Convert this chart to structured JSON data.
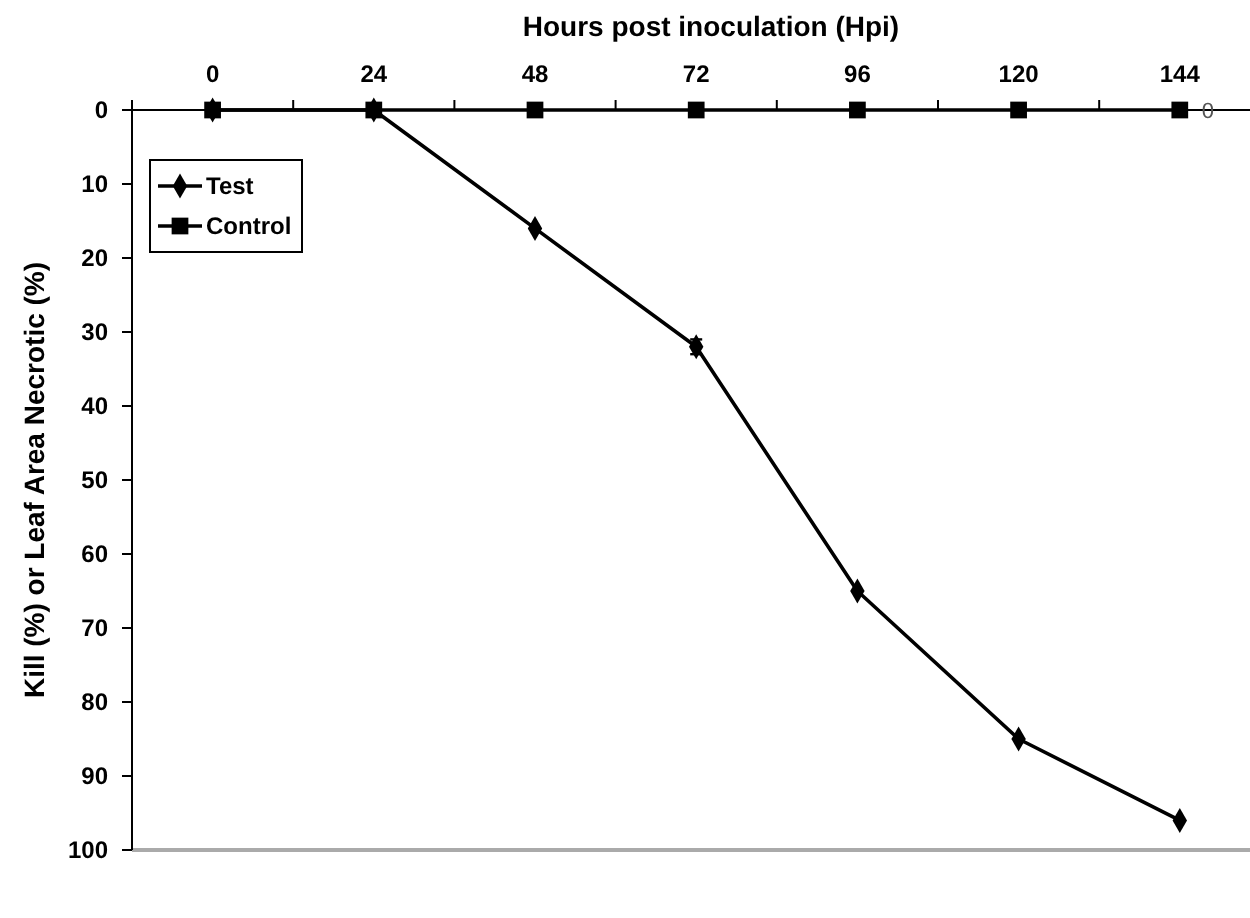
{
  "chart_data": {
    "type": "line",
    "xlabel": "Hours post inoculation (Hpi)",
    "ylabel": "Kill (%) or Leaf Area Necrotic (%)",
    "categories": [
      "0",
      "24",
      "48",
      "72",
      "96",
      "120",
      "144"
    ],
    "ylim": [
      100,
      0
    ],
    "yticks": [
      0,
      10,
      20,
      30,
      40,
      50,
      60,
      70,
      80,
      90,
      100
    ],
    "legend": "top left",
    "series": [
      {
        "name": "Test",
        "color": "#000000",
        "marker": "diamond",
        "values": [
          0,
          0,
          16,
          32,
          65,
          85,
          96
        ],
        "errors": [
          null,
          null,
          null,
          1,
          null,
          null,
          null
        ]
      },
      {
        "name": "Control",
        "color": "#000000",
        "marker": "square",
        "values": [
          0,
          0,
          0,
          0,
          0,
          0,
          0
        ],
        "value_labels": [
          null,
          null,
          null,
          null,
          null,
          null,
          "0"
        ]
      }
    ]
  }
}
